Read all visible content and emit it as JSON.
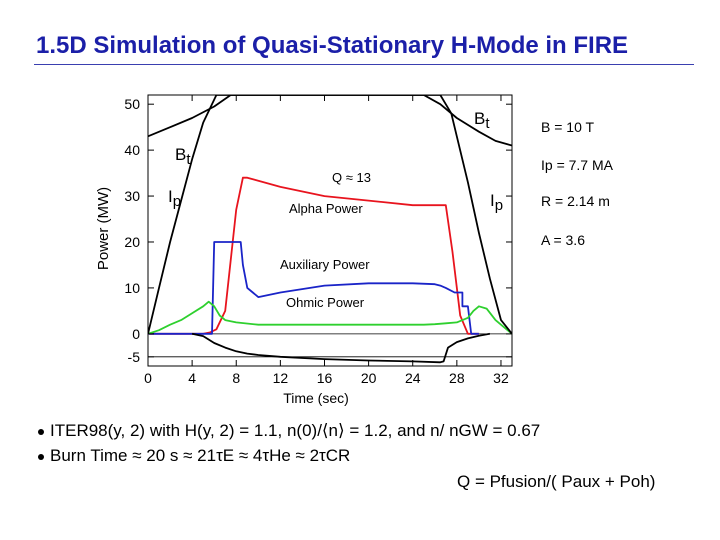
{
  "slide": {
    "title": "1.5D Simulation of Quasi-Stationary H-Mode in FIRE"
  },
  "parameters": [
    "B = 10 T",
    "Ip = 7.7 MA",
    "R = 2.14 m",
    "A = 3.6"
  ],
  "bullets": [
    "ITER98(y, 2) with H(y, 2) = 1.1, n(0)/⟨n⟩ = 1.2, and n/ nGW = 0.67",
    "Burn Time ≈ 20 s ≈ 21τE ≈ 4τHe ≈ 2τCR"
  ],
  "formula": "Q = Pfusion/( Paux + Poh)",
  "chart_data": {
    "type": "line",
    "xlabel": "Time (sec)",
    "ylabel": "Power (MW)",
    "xlim": [
      0,
      33
    ],
    "ylim": [
      -7,
      52
    ],
    "x_ticks": [
      0,
      4,
      8,
      12,
      16,
      20,
      24,
      28,
      32
    ],
    "y_ticks": [
      -5,
      0,
      10,
      20,
      30,
      40,
      50
    ],
    "y_tick_labels": [
      "-5",
      "0",
      "10",
      "20",
      "30",
      "40",
      "50"
    ],
    "annotations": {
      "q_label": "Q ≈ 13",
      "alpha_label": "Alpha Power",
      "aux_label": "Auxiliary Power",
      "ohmic_label": "Ohmic Power",
      "bt_left": "Bt",
      "bt_right": "Bt",
      "ip_left": "Ip",
      "ip_right": "Ip"
    },
    "series": [
      {
        "name": "Alpha Power",
        "color": "#e8141e",
        "x": [
          0,
          5.0,
          5.6,
          6.2,
          7.0,
          8.0,
          8.6,
          9.0,
          12,
          16,
          20,
          24,
          26.5,
          27,
          27.6,
          28.3,
          29.0,
          30
        ],
        "y": [
          0,
          0,
          0.3,
          1,
          5,
          27,
          34,
          34,
          32,
          30,
          29,
          28,
          28,
          28,
          18,
          4,
          0,
          0
        ]
      },
      {
        "name": "Auxiliary Power",
        "color": "#1a24c8",
        "x": [
          0,
          5.3,
          5.8,
          6.0,
          8.4,
          8.6,
          9.0,
          9.5,
          10.0,
          12,
          16,
          20,
          24,
          26,
          26.5,
          27,
          27.8,
          28.5,
          28.5,
          29.0,
          29.3,
          30
        ],
        "y": [
          0,
          0,
          0,
          20,
          20,
          15,
          10,
          9,
          8,
          9,
          10.5,
          11,
          11,
          10.8,
          10.5,
          10,
          9,
          9,
          6,
          6,
          0,
          0
        ]
      },
      {
        "name": "Ohmic Power",
        "color": "#2ed02e",
        "x": [
          0,
          1,
          2,
          3,
          4,
          5,
          5.5,
          6.0,
          6.5,
          7,
          8,
          10,
          14,
          18,
          22,
          25,
          26,
          27,
          28,
          29,
          29.5,
          30,
          30.7,
          31.5,
          32.5,
          33
        ],
        "y": [
          0,
          0.8,
          2,
          3,
          4.5,
          6,
          7,
          6,
          4,
          3,
          2.5,
          2,
          2,
          2,
          2,
          2,
          2.1,
          2.3,
          2.5,
          3.5,
          5,
          6,
          5.5,
          3,
          1,
          0
        ]
      },
      {
        "name": "Bt",
        "color": "#000000",
        "x": [
          0,
          2,
          4,
          6,
          7.5,
          8,
          25,
          26.5,
          28,
          30,
          31.5,
          33
        ],
        "y": [
          43,
          45,
          47,
          49.5,
          52,
          52,
          52,
          50,
          47,
          44,
          42,
          41
        ]
      },
      {
        "name": "Ip",
        "color": "#000000",
        "x": [
          0,
          1,
          2,
          3,
          4,
          5,
          6.2,
          26.5,
          27.5,
          28,
          29,
          30,
          31,
          32,
          33
        ],
        "y": [
          0,
          10,
          20,
          29,
          38,
          46,
          52,
          52,
          48,
          43,
          33,
          22,
          12,
          3,
          0
        ]
      },
      {
        "name": "Loop voltage",
        "color": "#000000",
        "x": [
          4.0,
          5.0,
          6.0,
          7.0,
          8.0,
          9.0,
          10.0,
          12,
          16,
          20,
          24,
          26.5,
          26.8,
          27.2,
          28,
          29,
          30,
          31
        ],
        "y": [
          0,
          -0.5,
          -2,
          -3,
          -3.8,
          -4.3,
          -4.6,
          -5,
          -5.5,
          -5.8,
          -6,
          -6.2,
          -6,
          -3,
          -1.8,
          -1,
          -0.4,
          0
        ]
      }
    ]
  }
}
